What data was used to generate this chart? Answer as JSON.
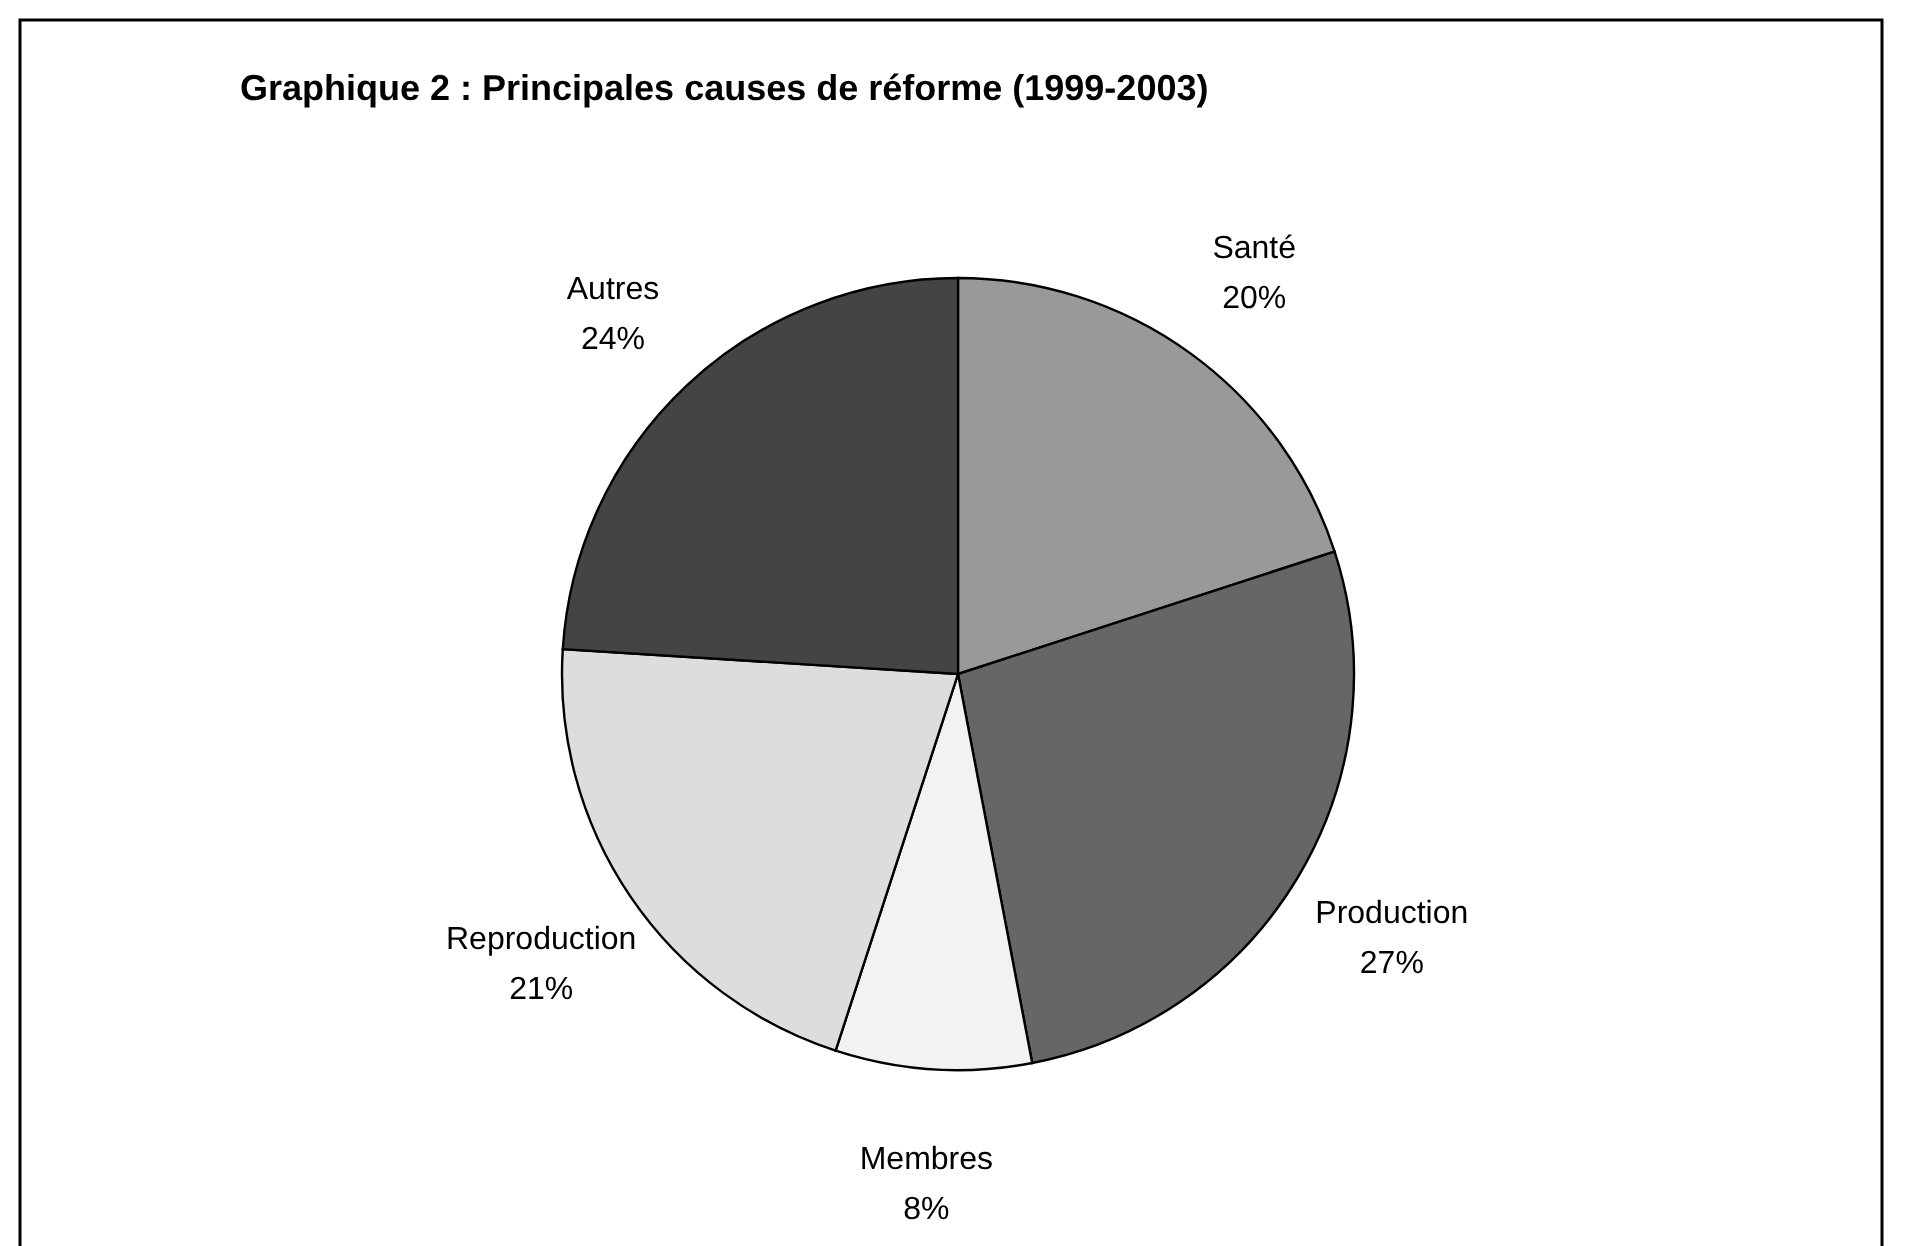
{
  "chart_data": {
    "type": "pie",
    "title": "Graphique 2 : Principales causes de réforme (1999-2003)",
    "categories": [
      "Santé",
      "Production",
      "Membres",
      "Reproduction",
      "Autres"
    ],
    "values": [
      20,
      27,
      8,
      21,
      24
    ],
    "colors": [
      "#999999",
      "#666666",
      "#f2f2f2",
      "#dddddd",
      "#444444"
    ],
    "value_labels": [
      "20%",
      "27%",
      "8%",
      "21%",
      "24%"
    ]
  }
}
